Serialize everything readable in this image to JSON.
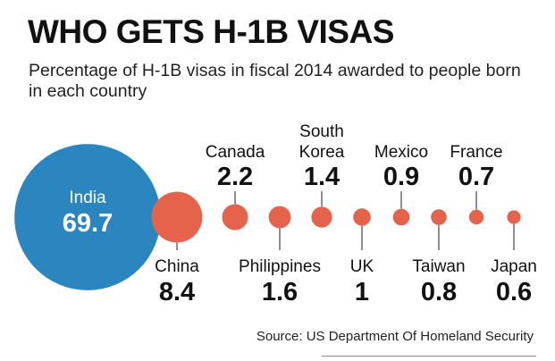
{
  "title": "WHO GETS H-1B VISAS",
  "subtitle": "Percentage of H-1B visas in fiscal 2014 awarded to people born in each country",
  "source": "Source: US Department Of Homeland Security",
  "colors": {
    "india_bubble": "#2b86c0",
    "country_bubble": "#e4634a",
    "text": "#111111"
  },
  "chart_data": {
    "type": "bubble",
    "title": "WHO GETS H-1B VISAS",
    "subtitle": "Percentage of H-1B visas in fiscal 2014 awarded to people born in each country",
    "unit": "percent",
    "series": [
      {
        "categories": [
          "India",
          "China",
          "Canada",
          "Philippines",
          "South Korea",
          "UK",
          "Mexico",
          "Taiwan",
          "France",
          "Japan"
        ],
        "values": [
          69.7,
          8.4,
          2.2,
          1.6,
          1.4,
          1,
          0.9,
          0.8,
          0.7,
          0.6
        ],
        "label_lines": [
          [
            "India"
          ],
          [
            "China"
          ],
          [
            "Canada"
          ],
          [
            "Philippines"
          ],
          [
            "South",
            "Korea"
          ],
          [
            "UK"
          ],
          [
            "Mexico"
          ],
          [
            "Taiwan"
          ],
          [
            "France"
          ],
          [
            "Japan"
          ]
        ],
        "label_side": [
          "inside",
          "below",
          "above",
          "below",
          "above",
          "below",
          "above",
          "below",
          "above",
          "below"
        ]
      }
    ]
  }
}
